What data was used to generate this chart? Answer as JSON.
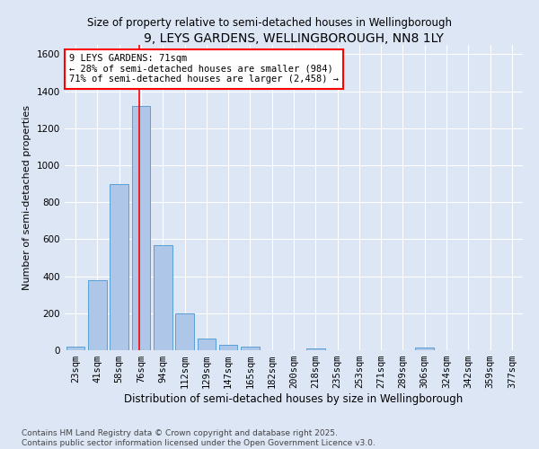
{
  "title": "9, LEYS GARDENS, WELLINGBOROUGH, NN8 1LY",
  "subtitle": "Size of property relative to semi-detached houses in Wellingborough",
  "xlabel": "Distribution of semi-detached houses by size in Wellingborough",
  "ylabel": "Number of semi-detached properties",
  "categories": [
    "23sqm",
    "41sqm",
    "58sqm",
    "76sqm",
    "94sqm",
    "112sqm",
    "129sqm",
    "147sqm",
    "165sqm",
    "182sqm",
    "200sqm",
    "218sqm",
    "235sqm",
    "253sqm",
    "271sqm",
    "289sqm",
    "306sqm",
    "324sqm",
    "342sqm",
    "359sqm",
    "377sqm"
  ],
  "values": [
    18,
    380,
    900,
    1320,
    570,
    200,
    65,
    30,
    18,
    0,
    0,
    12,
    0,
    0,
    0,
    0,
    14,
    0,
    0,
    0,
    0
  ],
  "bar_color": "#aec6e8",
  "bar_edge_color": "#5a9fd4",
  "property_line_x": 2.925,
  "pct_smaller": 28,
  "pct_larger": 71,
  "n_smaller": 984,
  "n_larger": 2458,
  "ylim": [
    0,
    1650
  ],
  "yticks": [
    0,
    200,
    400,
    600,
    800,
    1000,
    1200,
    1400,
    1600
  ],
  "background_color": "#dce6f5",
  "footer": "Contains HM Land Registry data © Crown copyright and database right 2025.\nContains public sector information licensed under the Open Government Licence v3.0.",
  "title_fontsize": 10,
  "subtitle_fontsize": 8.5,
  "xlabel_fontsize": 8.5,
  "ylabel_fontsize": 8,
  "tick_fontsize": 7.5,
  "annot_fontsize": 7.5,
  "footer_fontsize": 6.5
}
